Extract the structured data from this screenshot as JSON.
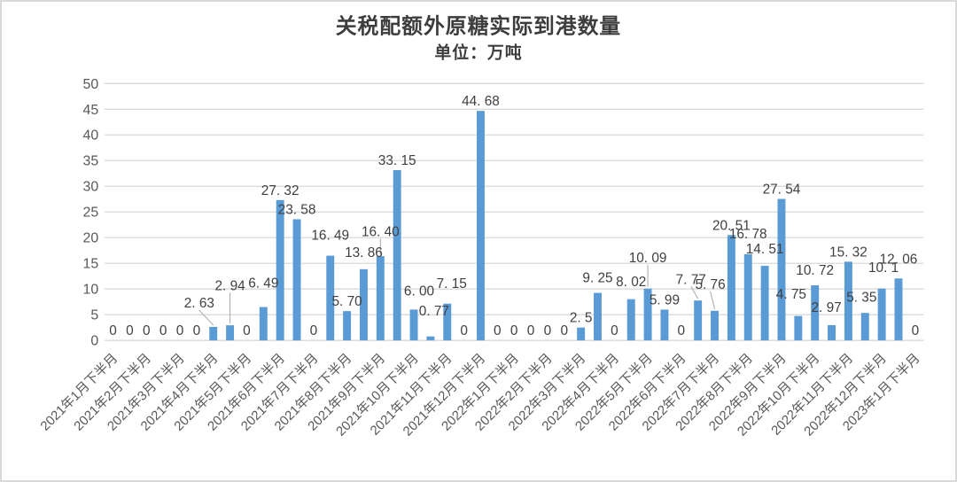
{
  "chart_data": {
    "type": "bar",
    "title": "关税配额外原糖实际到港数量",
    "subtitle": "单位：万吨",
    "unit": "万吨",
    "ylim": [
      0,
      50
    ],
    "y_ticks": [
      0,
      5,
      10,
      15,
      20,
      25,
      30,
      35,
      40,
      45,
      50
    ],
    "grid": true,
    "legend": "none",
    "bar_color": "#5b9bd5",
    "grid_color": "#d9d9d9",
    "value_label_color": "#404040",
    "axis_tick_color": "#595959",
    "leader_line_color": "#a6a6a6",
    "frame_border_color": "#d9d9d9",
    "x_label_every": 2,
    "x_tick_labels": [
      "2021年1月下半月",
      "2021年2月下半月",
      "2021年3月下半月",
      "2021年4月下半月",
      "2021年5月下半月",
      "2021年6月下半月",
      "2021年7月下半月",
      "2021年8月下半月",
      "2021年9月下半月",
      "2021年10月下半月",
      "2021年11月下半月",
      "2021年12月下半月",
      "2022年1月下半月",
      "2022年2月下半月",
      "2022年3月下半月",
      "2022年4月下半月",
      "2022年5月下半月",
      "2022年6月下半月",
      "2022年7月下半月",
      "2022年8月下半月",
      "2022年9月下半月",
      "2022年10月下半月",
      "2022年11月下半月",
      "2022年12月下半月",
      "2023年1月下半月"
    ],
    "values": [
      0,
      0,
      0,
      0,
      0,
      0,
      2.63,
      2.94,
      0,
      6.49,
      27.32,
      23.58,
      0,
      16.49,
      5.7,
      13.86,
      16.4,
      33.15,
      6,
      0.77,
      7.15,
      0,
      44.68,
      0,
      0,
      0,
      0,
      0,
      2.5,
      9.25,
      0,
      8.02,
      10.09,
      5.99,
      0,
      7.77,
      5.76,
      20.51,
      16.78,
      14.51,
      27.54,
      4.75,
      10.72,
      2.97,
      15.32,
      5.35,
      10.1,
      12.06,
      0
    ],
    "value_labels": [
      "0",
      "0",
      "0",
      "0",
      "0",
      "0",
      "2.63",
      "2.94",
      "0",
      "6.49",
      "27.32",
      "23.58",
      "0",
      "16.49",
      "5.70",
      "13.86",
      "16.40",
      "33.15",
      "6.00",
      "0.77",
      "7.15",
      "0",
      "44.68",
      "0",
      "0",
      "0",
      "0",
      "0",
      "2.5",
      "9.25",
      "0",
      "8.02",
      "10.09",
      "5.99",
      "0",
      "7.77",
      "5.76",
      "20.51",
      "16.78",
      "14.51",
      "27.54",
      "4.75",
      "10.72",
      "2.97",
      "15.32",
      "5.35",
      "10.1",
      "12.06",
      "0"
    ],
    "label_offsets": {
      "6": {
        "dx": -16,
        "dy": -16,
        "leader": true
      },
      "7": {
        "dx": 0,
        "dy": -34,
        "leader": true
      },
      "9": {
        "dx": 0,
        "dy": -16
      },
      "13": {
        "dx": 0,
        "dy": -12
      },
      "15": {
        "dx": 0,
        "dy": -8
      },
      "16": {
        "dx": 0,
        "dy": -17,
        "leader": true
      },
      "18": {
        "dx": 6,
        "dy": -10
      },
      "19": {
        "dx": 4,
        "dy": -18
      },
      "20": {
        "dx": 5,
        "dy": -12
      },
      "29": {
        "dx": 0,
        "dy": -6
      },
      "31": {
        "dx": 0,
        "dy": -9
      },
      "32": {
        "dx": 0,
        "dy": -24,
        "leader": true
      },
      "35": {
        "dx": -8,
        "dy": -13,
        "leader": true
      },
      "36": {
        "dx": -5,
        "dy": -19,
        "leader": true
      },
      "38": {
        "dx": 0,
        "dy": -12
      },
      "39": {
        "dx": 0,
        "dy": -8
      },
      "41": {
        "dx": -8,
        "dy": -14
      },
      "42": {
        "dx": 0,
        "dy": -6
      },
      "43": {
        "dx": -6,
        "dy": -9
      },
      "45": {
        "dx": -4,
        "dy": -7
      },
      "46": {
        "dx": 2,
        "dy": -13
      },
      "47": {
        "dx": 0,
        "dy": -11
      }
    }
  }
}
